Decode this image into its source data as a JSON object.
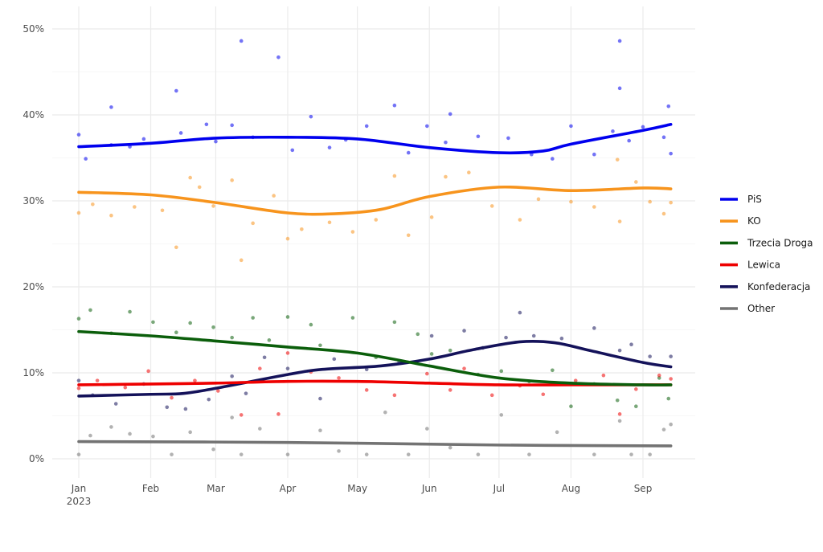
{
  "chart_data": {
    "type": "line",
    "title": "",
    "xlabel": "",
    "ylabel": "",
    "x_unit": "days since 2023-01-01",
    "xlim": [
      -12,
      265
    ],
    "ylim": [
      -2,
      52
    ],
    "grid": true,
    "legend_placement": "right",
    "x_ticks": [
      {
        "day": 0,
        "label": "Jan",
        "sub": "2023"
      },
      {
        "day": 31,
        "label": "Feb"
      },
      {
        "day": 59,
        "label": "Mar"
      },
      {
        "day": 90,
        "label": "Apr"
      },
      {
        "day": 120,
        "label": "May"
      },
      {
        "day": 151,
        "label": "Jun"
      },
      {
        "day": 181,
        "label": "Jul"
      },
      {
        "day": 212,
        "label": "Aug"
      },
      {
        "day": 243,
        "label": "Sep"
      }
    ],
    "y_ticks": [
      {
        "v": 0,
        "label": "0%"
      },
      {
        "v": 10,
        "label": "10%"
      },
      {
        "v": 20,
        "label": "20%"
      },
      {
        "v": 30,
        "label": "30%"
      },
      {
        "v": 40,
        "label": "40%"
      },
      {
        "v": 50,
        "label": "50%"
      }
    ],
    "series": [
      {
        "name": "PiS",
        "color": "#0000ee",
        "trend": [
          [
            0,
            36.3
          ],
          [
            31,
            36.7
          ],
          [
            59,
            37.3
          ],
          [
            90,
            37.4
          ],
          [
            120,
            37.2
          ],
          [
            151,
            36.2
          ],
          [
            181,
            35.6
          ],
          [
            200,
            35.8
          ],
          [
            212,
            36.6
          ],
          [
            243,
            38.2
          ],
          [
            255,
            38.9
          ]
        ],
        "points": [
          [
            0,
            37.7
          ],
          [
            3,
            34.9
          ],
          [
            14,
            40.9
          ],
          [
            14,
            36.5
          ],
          [
            22,
            36.3
          ],
          [
            28,
            37.2
          ],
          [
            42,
            42.8
          ],
          [
            44,
            37.9
          ],
          [
            55,
            38.9
          ],
          [
            59,
            36.9
          ],
          [
            66,
            38.8
          ],
          [
            70,
            48.6
          ],
          [
            75,
            37.4
          ],
          [
            86,
            46.7
          ],
          [
            92,
            35.9
          ],
          [
            100,
            39.8
          ],
          [
            108,
            36.2
          ],
          [
            115,
            37.1
          ],
          [
            124,
            38.7
          ],
          [
            136,
            41.1
          ],
          [
            142,
            35.6
          ],
          [
            150,
            38.7
          ],
          [
            158,
            36.8
          ],
          [
            160,
            40.1
          ],
          [
            172,
            37.5
          ],
          [
            185,
            37.3
          ],
          [
            195,
            35.4
          ],
          [
            204,
            34.9
          ],
          [
            212,
            38.7
          ],
          [
            222,
            35.4
          ],
          [
            230,
            38.1
          ],
          [
            233,
            48.6
          ],
          [
            233,
            43.1
          ],
          [
            237,
            37.0
          ],
          [
            243,
            38.6
          ],
          [
            252,
            37.4
          ],
          [
            254,
            41.0
          ],
          [
            255,
            35.5
          ]
        ]
      },
      {
        "name": "KO",
        "color": "#f7941d",
        "trend": [
          [
            0,
            31.0
          ],
          [
            31,
            30.7
          ],
          [
            59,
            29.8
          ],
          [
            90,
            28.6
          ],
          [
            110,
            28.5
          ],
          [
            130,
            29.0
          ],
          [
            151,
            30.5
          ],
          [
            181,
            31.6
          ],
          [
            212,
            31.2
          ],
          [
            243,
            31.5
          ],
          [
            255,
            31.4
          ]
        ],
        "points": [
          [
            0,
            28.6
          ],
          [
            6,
            29.6
          ],
          [
            14,
            28.3
          ],
          [
            24,
            29.3
          ],
          [
            36,
            28.9
          ],
          [
            42,
            24.6
          ],
          [
            48,
            32.7
          ],
          [
            52,
            31.6
          ],
          [
            58,
            29.4
          ],
          [
            66,
            32.4
          ],
          [
            75,
            27.4
          ],
          [
            70,
            23.1
          ],
          [
            84,
            30.6
          ],
          [
            90,
            25.6
          ],
          [
            96,
            26.7
          ],
          [
            108,
            27.5
          ],
          [
            118,
            26.4
          ],
          [
            128,
            27.8
          ],
          [
            136,
            32.9
          ],
          [
            142,
            26.0
          ],
          [
            152,
            28.1
          ],
          [
            158,
            32.8
          ],
          [
            168,
            33.3
          ],
          [
            178,
            29.4
          ],
          [
            190,
            27.8
          ],
          [
            198,
            30.2
          ],
          [
            212,
            29.9
          ],
          [
            222,
            29.3
          ],
          [
            232,
            34.8
          ],
          [
            233,
            27.6
          ],
          [
            240,
            32.2
          ],
          [
            246,
            29.9
          ],
          [
            252,
            28.5
          ],
          [
            255,
            29.8
          ]
        ]
      },
      {
        "name": "Trzecia Droga",
        "color": "#0b5e0b",
        "trend": [
          [
            0,
            14.8
          ],
          [
            31,
            14.3
          ],
          [
            59,
            13.7
          ],
          [
            90,
            13.0
          ],
          [
            120,
            12.3
          ],
          [
            151,
            10.8
          ],
          [
            181,
            9.4
          ],
          [
            212,
            8.8
          ],
          [
            243,
            8.6
          ],
          [
            255,
            8.6
          ]
        ],
        "points": [
          [
            0,
            16.3
          ],
          [
            5,
            17.3
          ],
          [
            14,
            14.6
          ],
          [
            22,
            17.1
          ],
          [
            32,
            15.9
          ],
          [
            42,
            14.7
          ],
          [
            48,
            15.8
          ],
          [
            58,
            15.3
          ],
          [
            66,
            14.1
          ],
          [
            75,
            16.4
          ],
          [
            82,
            13.8
          ],
          [
            90,
            16.5
          ],
          [
            100,
            15.6
          ],
          [
            104,
            13.2
          ],
          [
            118,
            16.4
          ],
          [
            128,
            11.8
          ],
          [
            136,
            15.9
          ],
          [
            146,
            14.5
          ],
          [
            152,
            12.2
          ],
          [
            160,
            12.6
          ],
          [
            172,
            9.8
          ],
          [
            182,
            10.2
          ],
          [
            194,
            9.0
          ],
          [
            204,
            10.3
          ],
          [
            212,
            6.1
          ],
          [
            222,
            8.7
          ],
          [
            232,
            6.8
          ],
          [
            240,
            6.1
          ],
          [
            250,
            9.4
          ],
          [
            254,
            7.0
          ]
        ]
      },
      {
        "name": "Lewica",
        "color": "#ee0000",
        "trend": [
          [
            0,
            8.6
          ],
          [
            31,
            8.7
          ],
          [
            59,
            8.8
          ],
          [
            90,
            9.0
          ],
          [
            120,
            9.0
          ],
          [
            151,
            8.8
          ],
          [
            181,
            8.6
          ],
          [
            212,
            8.6
          ],
          [
            243,
            8.6
          ],
          [
            255,
            8.6
          ]
        ],
        "points": [
          [
            0,
            8.2
          ],
          [
            8,
            9.1
          ],
          [
            20,
            8.3
          ],
          [
            30,
            10.2
          ],
          [
            40,
            7.1
          ],
          [
            50,
            9.1
          ],
          [
            60,
            7.9
          ],
          [
            70,
            5.1
          ],
          [
            78,
            10.5
          ],
          [
            86,
            5.2
          ],
          [
            90,
            12.3
          ],
          [
            100,
            10.1
          ],
          [
            112,
            9.4
          ],
          [
            124,
            8.0
          ],
          [
            136,
            7.4
          ],
          [
            150,
            9.9
          ],
          [
            160,
            8.0
          ],
          [
            166,
            10.5
          ],
          [
            178,
            7.4
          ],
          [
            190,
            8.5
          ],
          [
            200,
            7.5
          ],
          [
            214,
            9.1
          ],
          [
            226,
            9.7
          ],
          [
            233,
            5.2
          ],
          [
            240,
            8.1
          ],
          [
            250,
            9.7
          ],
          [
            255,
            9.3
          ]
        ]
      },
      {
        "name": "Konfederacja",
        "color": "#14125a",
        "trend": [
          [
            0,
            7.3
          ],
          [
            31,
            7.5
          ],
          [
            45,
            7.6
          ],
          [
            59,
            8.2
          ],
          [
            90,
            9.8
          ],
          [
            105,
            10.4
          ],
          [
            130,
            10.8
          ],
          [
            151,
            11.6
          ],
          [
            170,
            12.7
          ],
          [
            190,
            13.6
          ],
          [
            205,
            13.5
          ],
          [
            220,
            12.6
          ],
          [
            243,
            11.2
          ],
          [
            255,
            10.7
          ]
        ],
        "points": [
          [
            0,
            9.1
          ],
          [
            6,
            7.4
          ],
          [
            16,
            6.4
          ],
          [
            28,
            8.7
          ],
          [
            38,
            6.0
          ],
          [
            46,
            5.8
          ],
          [
            56,
            6.9
          ],
          [
            66,
            9.6
          ],
          [
            72,
            7.6
          ],
          [
            80,
            11.8
          ],
          [
            90,
            10.5
          ],
          [
            104,
            7.0
          ],
          [
            110,
            11.6
          ],
          [
            124,
            10.4
          ],
          [
            138,
            11.3
          ],
          [
            152,
            14.3
          ],
          [
            166,
            14.9
          ],
          [
            174,
            12.9
          ],
          [
            184,
            14.1
          ],
          [
            190,
            17.0
          ],
          [
            196,
            14.3
          ],
          [
            208,
            14.0
          ],
          [
            222,
            15.2
          ],
          [
            233,
            12.6
          ],
          [
            238,
            13.3
          ],
          [
            246,
            11.9
          ],
          [
            255,
            11.9
          ]
        ]
      },
      {
        "name": "Other",
        "color": "#737373",
        "trend": [
          [
            0,
            2.0
          ],
          [
            90,
            1.9
          ],
          [
            181,
            1.6
          ],
          [
            255,
            1.5
          ]
        ],
        "points": [
          [
            0,
            0.5
          ],
          [
            5,
            2.7
          ],
          [
            14,
            3.7
          ],
          [
            22,
            2.9
          ],
          [
            32,
            2.6
          ],
          [
            40,
            0.5
          ],
          [
            48,
            3.1
          ],
          [
            58,
            1.1
          ],
          [
            66,
            4.8
          ],
          [
            70,
            0.5
          ],
          [
            78,
            3.5
          ],
          [
            90,
            0.5
          ],
          [
            104,
            3.3
          ],
          [
            112,
            0.9
          ],
          [
            124,
            0.5
          ],
          [
            132,
            5.4
          ],
          [
            142,
            0.5
          ],
          [
            150,
            3.5
          ],
          [
            160,
            1.3
          ],
          [
            172,
            0.5
          ],
          [
            182,
            5.1
          ],
          [
            194,
            0.5
          ],
          [
            206,
            3.1
          ],
          [
            222,
            0.5
          ],
          [
            233,
            4.4
          ],
          [
            238,
            0.5
          ],
          [
            246,
            0.5
          ],
          [
            252,
            3.4
          ],
          [
            255,
            4.0
          ]
        ]
      }
    ]
  }
}
